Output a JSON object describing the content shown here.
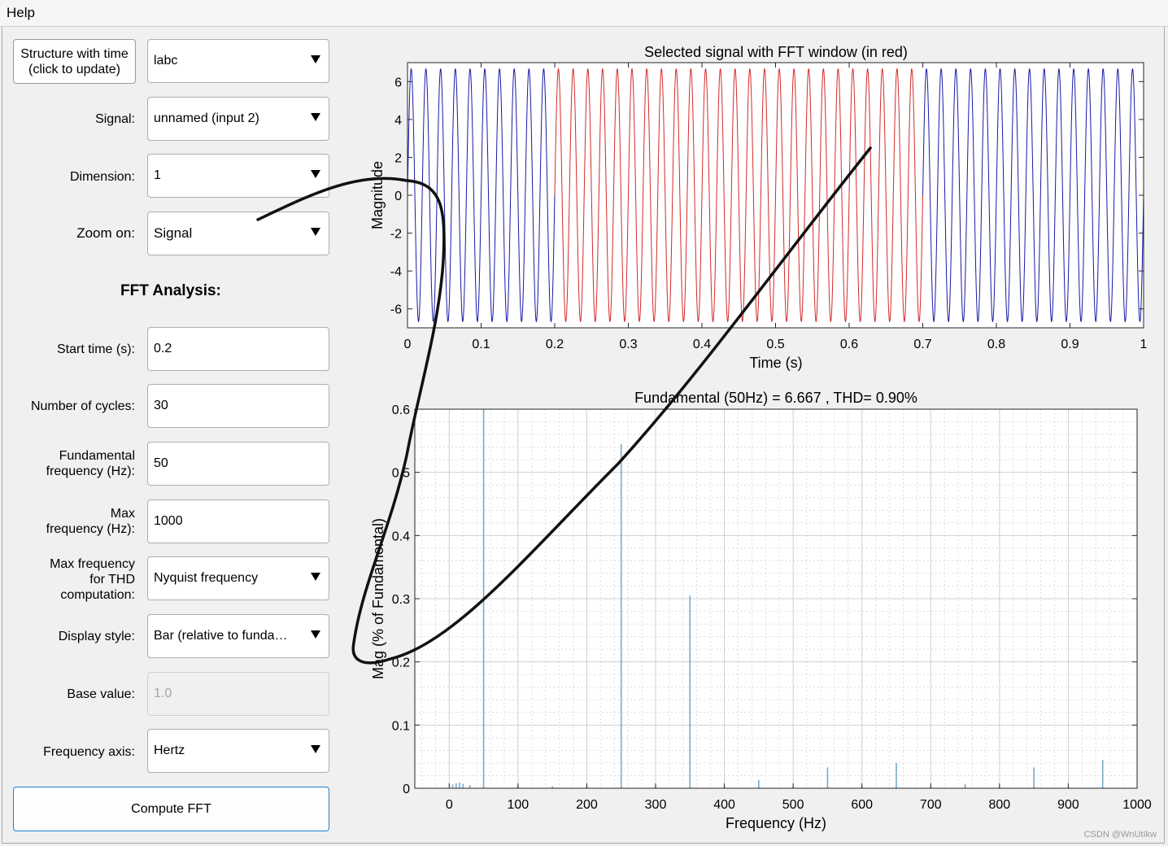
{
  "menu": {
    "help": "Help"
  },
  "left_panel": {
    "structure_button": "Structure with time\n(click to update)",
    "structure_value": "labc",
    "signal_label": "Signal:",
    "signal_value": "unnamed (input 2)",
    "dimension_label": "Dimension:",
    "dimension_value": "1",
    "zoom_label": "Zoom on:",
    "zoom_value": "Signal",
    "fft_title": "FFT Analysis:",
    "start_time_label": "Start time (s):",
    "start_time_value": "0.2",
    "cycles_label": "Number of cycles:",
    "cycles_value": "30",
    "fund_freq_label": "Fundamental\nfrequency (Hz):",
    "fund_freq_value": "50",
    "max_freq_label": "Max\nfrequency (Hz):",
    "max_freq_value": "1000",
    "thd_freq_label": "Max frequency\nfor THD\ncomputation:",
    "thd_freq_value": "Nyquist frequency",
    "display_style_label": "Display style:",
    "display_style_value": "Bar (relative to funda…",
    "base_value_label": "Base value:",
    "base_value_value": "1.0",
    "freq_axis_label": "Frequency axis:",
    "freq_axis_value": "Hertz",
    "compute_button": "Compute FFT"
  },
  "watermark": "CSDN @WnUtIkw",
  "colors": {
    "signal": "#1a1aa6",
    "window": "#d42a2a",
    "bars": "#7aaac8",
    "annotation": "#111111"
  },
  "chart_data": [
    {
      "type": "line",
      "title": "Selected signal with FFT window (in red)",
      "xlabel": "Time (s)",
      "ylabel": "Magnitude",
      "xlim": [
        0,
        1
      ],
      "ylim": [
        -7,
        7
      ],
      "xticks": [
        0,
        0.1,
        0.2,
        0.3,
        0.4,
        0.5,
        0.6,
        0.7,
        0.8,
        0.9,
        1
      ],
      "yticks": [
        -6,
        -4,
        -2,
        0,
        2,
        4,
        6
      ],
      "frequency_hz": 50,
      "amplitude": 6.667,
      "series": [
        {
          "x_range": [
            0,
            0.2
          ],
          "color": "blue"
        },
        {
          "x_range": [
            0.2,
            0.7
          ],
          "color": "red"
        },
        {
          "x_range": [
            0.7,
            1
          ],
          "color": "blue"
        }
      ]
    },
    {
      "type": "bar",
      "title": "Fundamental (50Hz) = 6.667 , THD= 0.90%",
      "xlabel": "Frequency (Hz)",
      "ylabel": "Mag (% of Fundamental)",
      "xlim": [
        -50,
        1000
      ],
      "ylim": [
        0,
        0.6
      ],
      "xticks": [
        0,
        100,
        200,
        300,
        400,
        500,
        600,
        700,
        800,
        900,
        1000
      ],
      "yticks": [
        0,
        0.1,
        0.2,
        0.3,
        0.4,
        0.5,
        0.6
      ],
      "grid": "minor",
      "bars": [
        {
          "x": 50,
          "y": 0.6
        },
        {
          "x": 250,
          "y": 0.545
        },
        {
          "x": 350,
          "y": 0.305
        },
        {
          "x": 450,
          "y": 0.013
        },
        {
          "x": 550,
          "y": 0.033
        },
        {
          "x": 650,
          "y": 0.04
        },
        {
          "x": 750,
          "y": 0.007
        },
        {
          "x": 850,
          "y": 0.033
        },
        {
          "x": 950,
          "y": 0.045
        },
        {
          "x": 5,
          "y": 0.006
        },
        {
          "x": 10,
          "y": 0.008
        },
        {
          "x": 15,
          "y": 0.009
        },
        {
          "x": 20,
          "y": 0.007
        },
        {
          "x": 30,
          "y": 0.005
        },
        {
          "x": 100,
          "y": 0.004
        },
        {
          "x": 150,
          "y": 0.003
        },
        {
          "x": 200,
          "y": 0.003
        },
        {
          "x": 300,
          "y": 0.003
        },
        {
          "x": 400,
          "y": 0.003
        },
        {
          "x": 500,
          "y": 0.003
        },
        {
          "x": 600,
          "y": 0.003
        },
        {
          "x": 700,
          "y": 0.003
        },
        {
          "x": 800,
          "y": 0.003
        },
        {
          "x": 900,
          "y": 0.002
        }
      ]
    }
  ]
}
